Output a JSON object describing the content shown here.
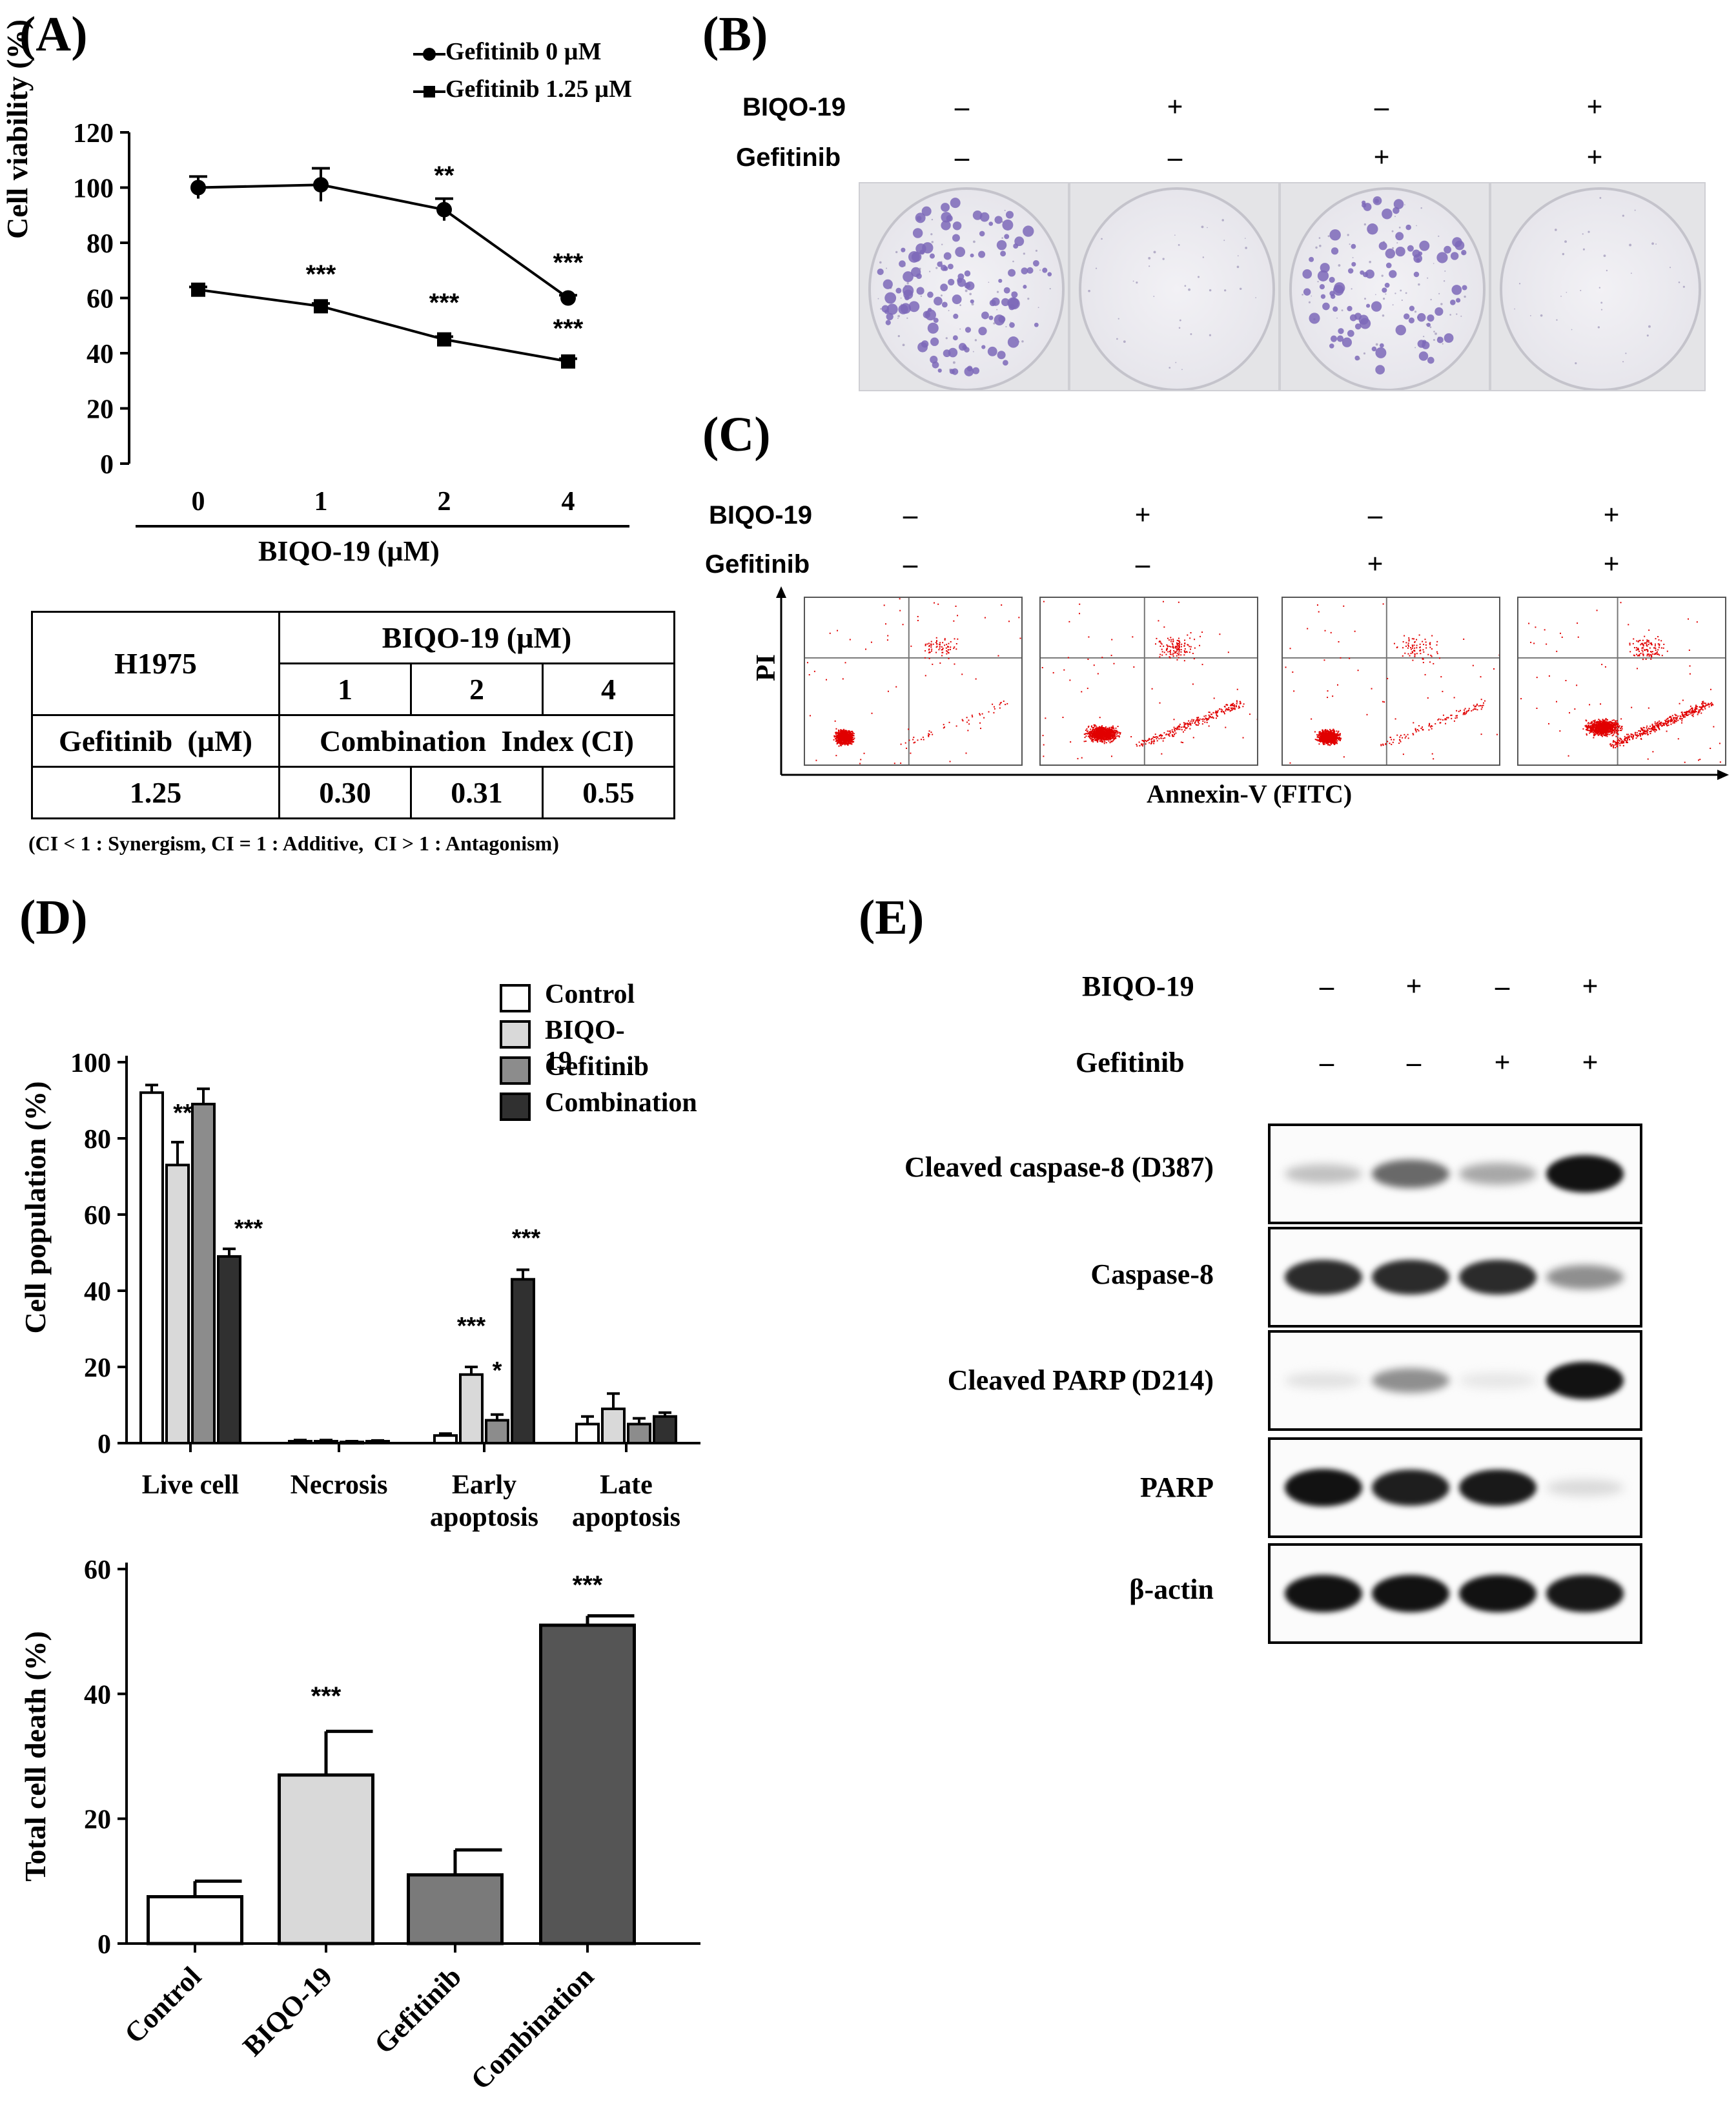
{
  "panelA": {
    "label": "(A)",
    "legend": [
      "Gefitinib 0 µM",
      "Gefitinib 1.25 µM"
    ],
    "ylabel": "Cell viability (%)",
    "xlabel": "BIQO-19 (µM)",
    "yticks": [
      "0",
      "20",
      "40",
      "60",
      "80",
      "100",
      "120"
    ],
    "xticks": [
      "0",
      "1",
      "2",
      "4"
    ],
    "annotations": [
      "**",
      "***",
      "***",
      "***"
    ],
    "table": {
      "corner": "H1975",
      "top_header": "BIQO-19 (µM)",
      "concentrations": [
        "1",
        "2",
        "4"
      ],
      "row_label": "Gefitinib  (µM)",
      "ci_header": "Combination  Index (CI)",
      "gef_value": "1.25",
      "ci_values": [
        "0.30",
        "0.31",
        "0.55"
      ],
      "footnote": "(CI < 1 : Synergism, CI = 1 : Additive,  CI > 1 : Antagonism)"
    }
  },
  "panelB": {
    "label": "(B)",
    "rows": [
      {
        "name": "BIQO-19",
        "signs": [
          "–",
          "+",
          "–",
          "+"
        ]
      },
      {
        "name": "Gefitinib",
        "signs": [
          "–",
          "–",
          "+",
          "+"
        ]
      }
    ],
    "colony_density": [
      1.0,
      0.05,
      0.85,
      0.04
    ]
  },
  "panelC": {
    "label": "(C)",
    "rows": [
      {
        "name": "BIQO-19",
        "signs": [
          "–",
          "+",
          "–",
          "+"
        ]
      },
      {
        "name": "Gefitinib",
        "signs": [
          "–",
          "–",
          "+",
          "+"
        ]
      }
    ],
    "ylabel": "PI",
    "xlabel": "Annexin-V (FITC)"
  },
  "panelD": {
    "label": "(D)",
    "legend": [
      "Control",
      "BIQO-19",
      "Gefitinib",
      "Combination"
    ],
    "top_ylabel": "Cell population (%)",
    "top_yticks": [
      "0",
      "20",
      "40",
      "60",
      "80",
      "100"
    ],
    "top_categories": [
      [
        "Live cell"
      ],
      [
        "Necrosis"
      ],
      [
        "Early",
        "apoptosis"
      ],
      [
        "Late",
        "apoptosis"
      ]
    ],
    "top_annotations": [
      "**",
      "***",
      "***",
      "*",
      "***"
    ],
    "bottom_ylabel": "Total cell death (%)",
    "bottom_yticks": [
      "0",
      "20",
      "40",
      "60"
    ],
    "bottom_categories": [
      "Control",
      "BIQO-19",
      "Gefitinib",
      "Combination"
    ],
    "bottom_annotations": [
      "***",
      "***"
    ]
  },
  "panelE": {
    "label": "(E)",
    "rows": [
      {
        "name": "BIQO-19",
        "signs": [
          "–",
          "+",
          "–",
          "+"
        ]
      },
      {
        "name": "Gefitinib",
        "signs": [
          "–",
          "–",
          "+",
          "+"
        ]
      }
    ],
    "blots": [
      {
        "name": "Cleaved caspase-8 (D387)",
        "intensity": [
          0.25,
          0.6,
          0.35,
          0.95
        ]
      },
      {
        "name": "Caspase-8",
        "intensity": [
          0.85,
          0.85,
          0.85,
          0.45
        ]
      },
      {
        "name": "Cleaved PARP (D214)",
        "intensity": [
          0.12,
          0.45,
          0.1,
          0.95
        ]
      },
      {
        "name": "PARP",
        "intensity": [
          0.95,
          0.9,
          0.92,
          0.15
        ]
      },
      {
        "name": "β-actin",
        "intensity": [
          0.95,
          0.95,
          0.95,
          0.93
        ]
      }
    ]
  },
  "chart_data": [
    {
      "type": "line",
      "title": "",
      "xlabel": "BIQO-19 (µM)",
      "ylabel": "Cell viability (%)",
      "ylim": [
        0,
        120
      ],
      "categories": [
        "0",
        "1",
        "2",
        "4"
      ],
      "series": [
        {
          "name": "Gefitinib 0 µM",
          "values": [
            100,
            101,
            92,
            60
          ],
          "errors": [
            4,
            6,
            4,
            1
          ]
        },
        {
          "name": "Gefitinib 1.25 µM",
          "values": [
            63,
            57,
            45,
            37
          ],
          "errors": [
            1,
            1,
            1,
            1
          ]
        }
      ],
      "colors": [
        "#000000",
        "#000000"
      ]
    },
    {
      "type": "bar",
      "title": "",
      "xlabel": "",
      "ylabel": "Cell population (%)",
      "ylim": [
        0,
        100
      ],
      "categories": [
        "Live cell",
        "Necrosis",
        "Early apoptosis",
        "Late apoptosis"
      ],
      "series": [
        {
          "name": "Control",
          "values": [
            92,
            0.5,
            2,
            5
          ],
          "errors": [
            2,
            0.3,
            0.5,
            2
          ]
        },
        {
          "name": "BIQO-19",
          "values": [
            73,
            0.5,
            18,
            9
          ],
          "errors": [
            6,
            0.3,
            2,
            4
          ]
        },
        {
          "name": "Gefitinib",
          "values": [
            89,
            0.3,
            6,
            5
          ],
          "errors": [
            4,
            0.2,
            1.5,
            1.5
          ]
        },
        {
          "name": "Combination",
          "values": [
            49,
            0.5,
            43,
            7
          ],
          "errors": [
            2,
            0.2,
            2.5,
            1
          ]
        }
      ],
      "colors": [
        "#ffffff",
        "#d9d9d9",
        "#8c8c8c",
        "#303030"
      ]
    },
    {
      "type": "bar",
      "title": "",
      "xlabel": "",
      "ylabel": "Total cell death (%)",
      "ylim": [
        0,
        60
      ],
      "categories": [
        "Control",
        "BIQO-19",
        "Gefitinib",
        "Combination"
      ],
      "values": [
        7.5,
        27,
        11,
        51
      ],
      "errors": [
        2.5,
        7,
        4,
        1.5
      ],
      "colors": [
        "#ffffff",
        "#d9d9d9",
        "#7a7a7a",
        "#555555"
      ]
    }
  ]
}
